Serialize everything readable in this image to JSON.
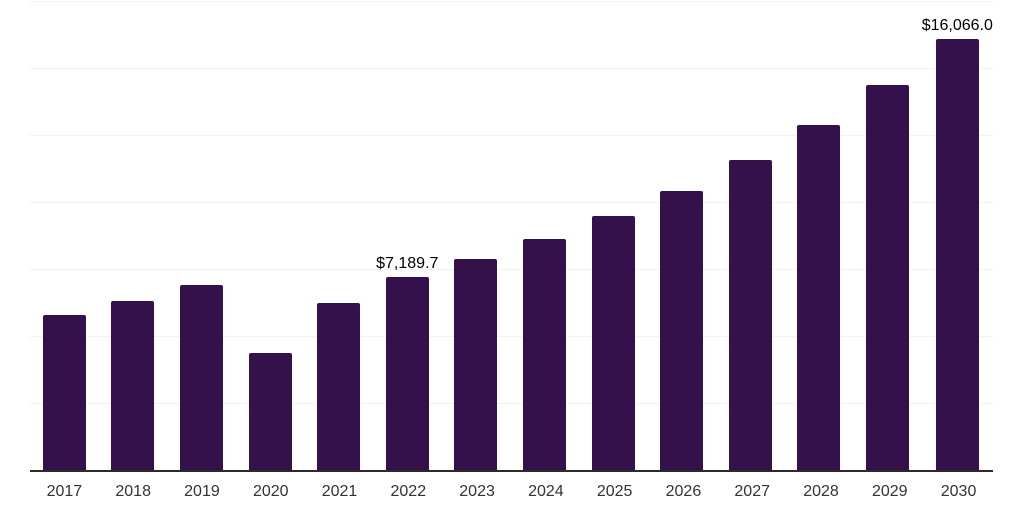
{
  "chart_data": {
    "type": "bar",
    "title": "",
    "xlabel": "",
    "ylabel": "",
    "categories": [
      "2017",
      "2018",
      "2019",
      "2020",
      "2021",
      "2022",
      "2023",
      "2024",
      "2025",
      "2026",
      "2027",
      "2028",
      "2029",
      "2030"
    ],
    "values": [
      5780,
      6300,
      6900,
      4370,
      6230,
      7189.7,
      7860,
      8610,
      9480,
      10420,
      11570,
      12860,
      14370,
      16066
    ],
    "data_labels": [
      "",
      "",
      "",
      "",
      "",
      "$7,189.7",
      "",
      "",
      "",
      "",
      "",
      "",
      "",
      "$16,066.0"
    ],
    "ylim": [
      0,
      17500
    ],
    "gridline_interval": 2500,
    "grid": true,
    "legend": false,
    "y_axis_tick_labels_shown": false,
    "colors": {
      "bar": "#35114c",
      "gridline": "#f2f2f2",
      "axis_line": "#2b2b2b",
      "data_label": "#000000",
      "tick_label": "#333333",
      "background": "#ffffff"
    }
  }
}
